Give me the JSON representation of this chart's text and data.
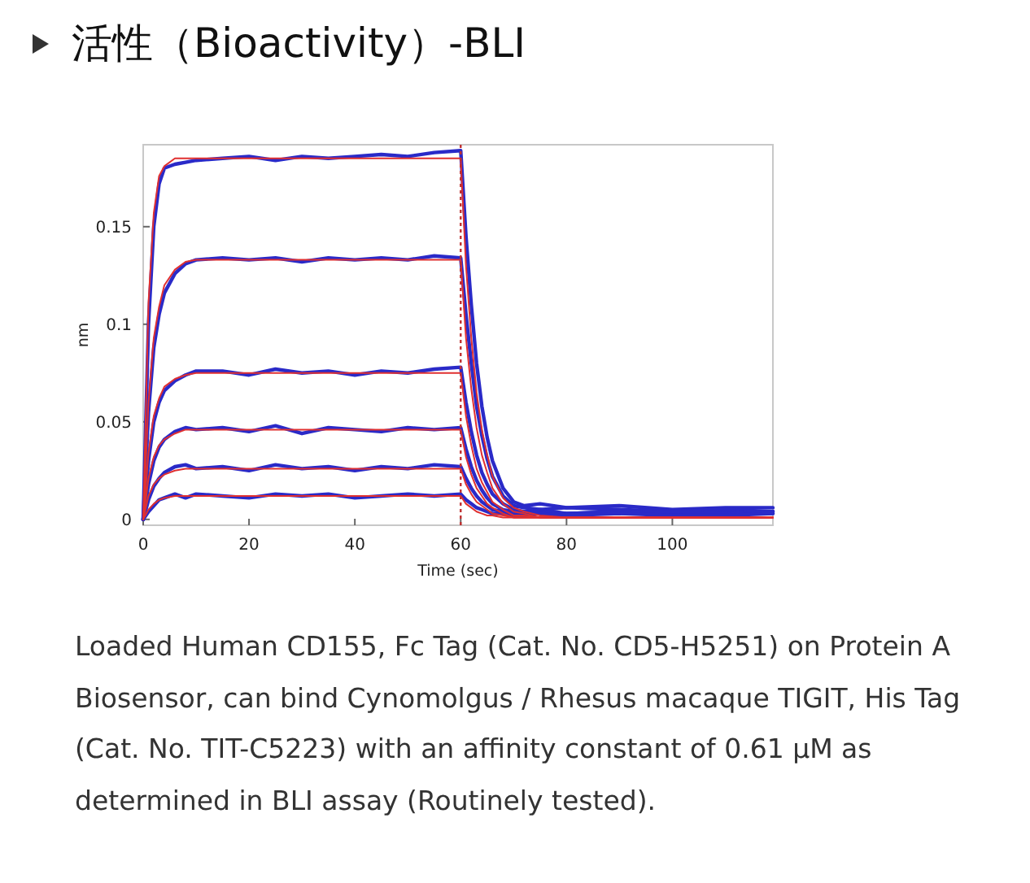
{
  "chart_data": {
    "type": "line",
    "title": "活性（Bioactivity）-BLI",
    "xlabel": "Time (sec)",
    "ylabel": "nm",
    "x": [
      0,
      1,
      2,
      3,
      4,
      6,
      8,
      10,
      15,
      20,
      25,
      30,
      35,
      40,
      45,
      50,
      55,
      60,
      61,
      62,
      63,
      64,
      65,
      66,
      68,
      70,
      72,
      75,
      80,
      90,
      100,
      110,
      119
    ],
    "series": [
      {
        "color": "#2a2ac8",
        "values": [
          0,
          0.1,
          0.15,
          0.172,
          0.18,
          0.182,
          0.183,
          0.184,
          0.185,
          0.186,
          0.184,
          0.186,
          0.185,
          0.186,
          0.187,
          0.186,
          0.188,
          0.189,
          0.145,
          0.11,
          0.08,
          0.058,
          0.042,
          0.03,
          0.016,
          0.009,
          0.007,
          0.008,
          0.006,
          0.007,
          0.005,
          0.006,
          0.006
        ]
      },
      {
        "color": "#2a2ac8",
        "values": [
          0,
          0.055,
          0.088,
          0.105,
          0.116,
          0.126,
          0.131,
          0.133,
          0.134,
          0.133,
          0.134,
          0.132,
          0.134,
          0.133,
          0.134,
          0.133,
          0.135,
          0.134,
          0.105,
          0.08,
          0.058,
          0.043,
          0.031,
          0.022,
          0.012,
          0.007,
          0.006,
          0.005,
          0.006,
          0.005,
          0.004,
          0.005,
          0.004
        ]
      },
      {
        "color": "#2a2ac8",
        "values": [
          0,
          0.03,
          0.05,
          0.06,
          0.066,
          0.071,
          0.074,
          0.076,
          0.076,
          0.074,
          0.077,
          0.075,
          0.076,
          0.074,
          0.076,
          0.075,
          0.077,
          0.078,
          0.06,
          0.045,
          0.033,
          0.024,
          0.018,
          0.013,
          0.008,
          0.005,
          0.004,
          0.005,
          0.003,
          0.004,
          0.003,
          0.004,
          0.003
        ]
      },
      {
        "color": "#2a2ac8",
        "values": [
          0,
          0.018,
          0.03,
          0.037,
          0.041,
          0.045,
          0.047,
          0.046,
          0.047,
          0.045,
          0.048,
          0.044,
          0.047,
          0.046,
          0.045,
          0.047,
          0.046,
          0.047,
          0.036,
          0.027,
          0.02,
          0.015,
          0.011,
          0.008,
          0.005,
          0.004,
          0.003,
          0.004,
          0.003,
          0.004,
          0.003,
          0.003,
          0.004
        ]
      },
      {
        "color": "#2a2ac8",
        "values": [
          0,
          0.01,
          0.017,
          0.021,
          0.024,
          0.027,
          0.028,
          0.026,
          0.027,
          0.025,
          0.028,
          0.026,
          0.027,
          0.025,
          0.027,
          0.026,
          0.028,
          0.027,
          0.021,
          0.016,
          0.012,
          0.009,
          0.007,
          0.005,
          0.004,
          0.003,
          0.003,
          0.004,
          0.003,
          0.003,
          0.004,
          0.003,
          0.004
        ]
      },
      {
        "color": "#2a2ac8",
        "values": [
          0,
          0.004,
          0.007,
          0.01,
          0.011,
          0.013,
          0.011,
          0.013,
          0.012,
          0.011,
          0.013,
          0.012,
          0.013,
          0.011,
          0.012,
          0.013,
          0.012,
          0.013,
          0.01,
          0.008,
          0.006,
          0.005,
          0.004,
          0.003,
          0.003,
          0.002,
          0.002,
          0.003,
          0.002,
          0.003,
          0.002,
          0.002,
          0.003
        ]
      },
      {
        "color": "#e03030",
        "values": [
          0,
          0.111,
          0.157,
          0.176,
          0.181,
          0.185,
          0.185,
          0.185,
          0.185,
          0.185,
          0.185,
          0.185,
          0.185,
          0.185,
          0.185,
          0.185,
          0.185,
          0.185,
          0.13,
          0.093,
          0.065,
          0.046,
          0.033,
          0.022,
          0.011,
          0.006,
          0.004,
          0.002,
          0.001,
          0.001,
          0.001,
          0.001,
          0.001
        ]
      },
      {
        "color": "#e03030",
        "values": [
          0,
          0.06,
          0.093,
          0.109,
          0.12,
          0.128,
          0.132,
          0.133,
          0.133,
          0.133,
          0.133,
          0.133,
          0.133,
          0.133,
          0.133,
          0.133,
          0.133,
          0.133,
          0.093,
          0.067,
          0.047,
          0.033,
          0.024,
          0.016,
          0.008,
          0.004,
          0.003,
          0.001,
          0.001,
          0.001,
          0.001,
          0.001,
          0.001
        ]
      },
      {
        "color": "#e03030",
        "values": [
          0,
          0.034,
          0.053,
          0.062,
          0.068,
          0.072,
          0.074,
          0.075,
          0.075,
          0.075,
          0.075,
          0.075,
          0.075,
          0.075,
          0.075,
          0.075,
          0.075,
          0.075,
          0.053,
          0.038,
          0.026,
          0.019,
          0.014,
          0.009,
          0.005,
          0.002,
          0.002,
          0.001,
          0.001,
          0.001,
          0.001,
          0.001,
          0.001
        ]
      },
      {
        "color": "#e03030",
        "values": [
          0,
          0.021,
          0.032,
          0.038,
          0.041,
          0.044,
          0.046,
          0.046,
          0.046,
          0.046,
          0.046,
          0.046,
          0.046,
          0.046,
          0.046,
          0.046,
          0.046,
          0.046,
          0.032,
          0.023,
          0.016,
          0.012,
          0.008,
          0.006,
          0.003,
          0.001,
          0.001,
          0.001,
          0.001,
          0.001,
          0.001,
          0.001,
          0.001
        ]
      },
      {
        "color": "#e03030",
        "values": [
          0,
          0.012,
          0.018,
          0.021,
          0.023,
          0.025,
          0.026,
          0.026,
          0.026,
          0.026,
          0.026,
          0.026,
          0.026,
          0.026,
          0.026,
          0.026,
          0.026,
          0.026,
          0.018,
          0.013,
          0.009,
          0.007,
          0.005,
          0.003,
          0.002,
          0.001,
          0.001,
          0.001,
          0.001,
          0.001,
          0.001,
          0.001,
          0.001
        ]
      },
      {
        "color": "#e03030",
        "values": [
          0,
          0.005,
          0.008,
          0.01,
          0.011,
          0.012,
          0.012,
          0.012,
          0.012,
          0.012,
          0.012,
          0.012,
          0.012,
          0.012,
          0.012,
          0.012,
          0.012,
          0.012,
          0.008,
          0.006,
          0.004,
          0.003,
          0.002,
          0.002,
          0.001,
          0.001,
          0.001,
          0.001,
          0.001,
          0.001,
          0.001,
          0.001,
          0.001
        ]
      }
    ],
    "xlim": [
      0,
      119
    ],
    "ylim": [
      -0.003,
      0.192
    ],
    "xticks": [
      0,
      20,
      40,
      60,
      80,
      100
    ],
    "yticks": [
      0,
      0.05,
      0.1,
      0.15
    ],
    "ref_lines": [
      {
        "axis": "x",
        "value": 60,
        "color": "#c03030",
        "line_style": "dotted"
      }
    ],
    "annotations": [
      "Loaded Human CD155, Fc Tag (Cat. No. CD5-H5251) on Protein A Biosensor, can bind Cynomolgus / Rhesus macaque TIGIT, His Tag (Cat. No. TIT-C5223) with an affinity constant of 0.61 μM as determined in BLI assay (Routinely tested)."
    ]
  }
}
